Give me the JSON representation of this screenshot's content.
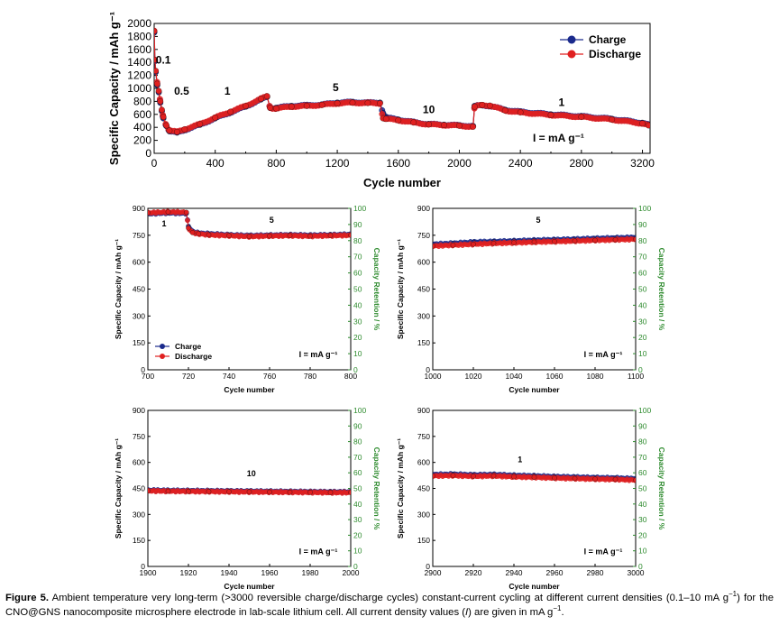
{
  "chart_data": [
    {
      "type": "scatter",
      "id": "main",
      "xlabel": "Cycle number",
      "ylabel": "Specific Capacity / mAh g⁻¹",
      "xlim": [
        0,
        3250
      ],
      "ylim": [
        0,
        2000
      ],
      "xticks": [
        0,
        400,
        800,
        1200,
        1600,
        2000,
        2400,
        2800,
        3200
      ],
      "yticks": [
        0,
        200,
        400,
        600,
        800,
        1000,
        1200,
        1400,
        1600,
        1800,
        2000
      ],
      "legend": {
        "position": "top-right",
        "entries": [
          "Charge",
          "Discharge"
        ]
      },
      "series": [
        {
          "name": "Charge",
          "color": "#1a2a8c",
          "x": [
            0,
            5,
            10,
            20,
            30,
            40,
            50,
            60,
            80,
            100,
            150,
            200,
            300,
            400,
            500,
            600,
            700,
            740,
            760,
            800,
            900,
            1000,
            1100,
            1200,
            1300,
            1400,
            1480,
            1500,
            1520,
            1600,
            1700,
            1800,
            1900,
            2000,
            2090,
            2100,
            2150,
            2200,
            2300,
            2400,
            2600,
            2800,
            3000,
            3200,
            3240
          ],
          "y": [
            1860,
            1420,
            1250,
            1050,
            940,
            780,
            650,
            540,
            420,
            340,
            320,
            360,
            440,
            540,
            630,
            720,
            830,
            870,
            700,
            700,
            730,
            740,
            750,
            780,
            790,
            780,
            780,
            620,
            550,
            520,
            480,
            450,
            440,
            430,
            420,
            730,
            740,
            730,
            670,
            640,
            600,
            570,
            530,
            470,
            440
          ]
        },
        {
          "name": "Discharge",
          "color": "#e02020",
          "x": [
            0,
            5,
            10,
            20,
            30,
            40,
            50,
            60,
            80,
            100,
            150,
            200,
            300,
            400,
            500,
            600,
            700,
            740,
            760,
            800,
            900,
            1000,
            1100,
            1200,
            1300,
            1400,
            1480,
            1500,
            1520,
            1600,
            1700,
            1800,
            1900,
            2000,
            2090,
            2100,
            2150,
            2200,
            2300,
            2400,
            2600,
            2800,
            3000,
            3200,
            3240
          ],
          "y": [
            1880,
            1440,
            1270,
            1070,
            960,
            800,
            670,
            560,
            430,
            350,
            330,
            370,
            450,
            550,
            640,
            730,
            840,
            880,
            700,
            690,
            720,
            730,
            745,
            770,
            780,
            775,
            770,
            540,
            530,
            510,
            475,
            445,
            435,
            425,
            410,
            720,
            745,
            735,
            660,
            630,
            590,
            560,
            520,
            460,
            430
          ]
        }
      ],
      "annotations": [
        {
          "text": "0.1",
          "x": 60,
          "y": 1380
        },
        {
          "text": "0.5",
          "x": 180,
          "y": 900
        },
        {
          "text": "1",
          "x": 480,
          "y": 900
        },
        {
          "text": "5",
          "x": 1190,
          "y": 960
        },
        {
          "text": "10",
          "x": 1800,
          "y": 620
        },
        {
          "text": "1",
          "x": 2670,
          "y": 730
        },
        {
          "text": "I = mA g⁻¹",
          "x": 2650,
          "y": 180
        }
      ]
    },
    {
      "type": "scatter",
      "id": "p700",
      "xlabel": "Cycle number",
      "ylabel": "Specific Capacity / mAh g⁻¹",
      "y2label": "Capacity Retention / %",
      "xlim": [
        700,
        800
      ],
      "ylim": [
        0,
        900
      ],
      "y2lim": [
        0,
        100
      ],
      "xticks": [
        700,
        720,
        740,
        760,
        780,
        800
      ],
      "yticks": [
        0,
        150,
        300,
        450,
        600,
        750,
        900
      ],
      "y2ticks": [
        0,
        10,
        20,
        30,
        40,
        50,
        60,
        70,
        80,
        90,
        100
      ],
      "legend": {
        "position": "bottom-left",
        "entries": [
          "Charge",
          "Discharge"
        ]
      },
      "series": [
        {
          "name": "Charge",
          "x": [
            700,
            710,
            719,
            720,
            722,
            725,
            730,
            740,
            750,
            760,
            770,
            780,
            790,
            800
          ],
          "y": [
            870,
            875,
            872,
            800,
            770,
            762,
            758,
            752,
            748,
            750,
            752,
            750,
            752,
            755
          ]
        },
        {
          "name": "Discharge",
          "x": [
            700,
            710,
            719,
            720,
            722,
            725,
            730,
            740,
            750,
            760,
            770,
            780,
            790,
            800
          ],
          "y": [
            875,
            880,
            878,
            790,
            765,
            758,
            752,
            748,
            743,
            746,
            748,
            745,
            748,
            750
          ]
        }
      ],
      "annotations": [
        {
          "text": "1",
          "x": 708,
          "y": 800
        },
        {
          "text": "5",
          "x": 761,
          "y": 820
        },
        {
          "text": "I = mA g⁻¹",
          "x": 784,
          "y": 70
        }
      ]
    },
    {
      "type": "scatter",
      "id": "p1000",
      "xlabel": "Cycle number",
      "ylabel": "Specific Capacity / mAh g⁻¹",
      "y2label": "Capacity Retention / %",
      "xlim": [
        1000,
        1100
      ],
      "ylim": [
        0,
        900
      ],
      "y2lim": [
        0,
        100
      ],
      "xticks": [
        1000,
        1020,
        1040,
        1060,
        1080,
        1100
      ],
      "yticks": [
        0,
        150,
        300,
        450,
        600,
        750,
        900
      ],
      "y2ticks": [
        0,
        10,
        20,
        30,
        40,
        50,
        60,
        70,
        80,
        90,
        100
      ],
      "series": [
        {
          "name": "Charge",
          "x": [
            1000,
            1010,
            1020,
            1030,
            1040,
            1050,
            1060,
            1070,
            1080,
            1090,
            1100
          ],
          "y": [
            700,
            705,
            712,
            715,
            718,
            722,
            725,
            728,
            732,
            735,
            738
          ]
        },
        {
          "name": "Discharge",
          "x": [
            1000,
            1010,
            1020,
            1030,
            1040,
            1050,
            1060,
            1070,
            1080,
            1090,
            1100
          ],
          "y": [
            690,
            695,
            700,
            705,
            708,
            712,
            715,
            718,
            722,
            725,
            728
          ]
        }
      ],
      "annotations": [
        {
          "text": "5",
          "x": 1052,
          "y": 820
        },
        {
          "text": "I = mA g⁻¹",
          "x": 1084,
          "y": 70
        }
      ]
    },
    {
      "type": "scatter",
      "id": "p1900",
      "xlabel": "Cycle number",
      "ylabel": "Specific Capacity / mAh g⁻¹",
      "y2label": "Capacity Retention / %",
      "xlim": [
        1900,
        2000
      ],
      "ylim": [
        0,
        900
      ],
      "y2lim": [
        0,
        100
      ],
      "xticks": [
        1900,
        1920,
        1940,
        1960,
        1980,
        2000
      ],
      "yticks": [
        0,
        150,
        300,
        450,
        600,
        750,
        900
      ],
      "y2ticks": [
        0,
        10,
        20,
        30,
        40,
        50,
        60,
        70,
        80,
        90,
        100
      ],
      "series": [
        {
          "name": "Charge",
          "x": [
            1900,
            1910,
            1920,
            1930,
            1940,
            1950,
            1960,
            1970,
            1980,
            1990,
            2000
          ],
          "y": [
            440,
            438,
            437,
            436,
            435,
            434,
            433,
            432,
            431,
            430,
            430
          ]
        },
        {
          "name": "Discharge",
          "x": [
            1900,
            1910,
            1920,
            1930,
            1940,
            1950,
            1960,
            1970,
            1980,
            1990,
            2000
          ],
          "y": [
            436,
            434,
            433,
            432,
            431,
            430,
            429,
            428,
            427,
            426,
            426
          ]
        }
      ],
      "annotations": [
        {
          "text": "10",
          "x": 1951,
          "y": 520
        },
        {
          "text": "I = mA g⁻¹",
          "x": 1984,
          "y": 70
        }
      ]
    },
    {
      "type": "scatter",
      "id": "p2900",
      "xlabel": "Cycle number",
      "ylabel": "Specific Capacity / mAh g⁻¹",
      "y2label": "Capacity Retention / %",
      "xlim": [
        2900,
        3000
      ],
      "ylim": [
        0,
        900
      ],
      "y2lim": [
        0,
        100
      ],
      "xticks": [
        2900,
        2920,
        2940,
        2960,
        2980,
        3000
      ],
      "yticks": [
        0,
        150,
        300,
        450,
        600,
        750,
        900
      ],
      "y2ticks": [
        0,
        10,
        20,
        30,
        40,
        50,
        60,
        70,
        80,
        90,
        100
      ],
      "series": [
        {
          "name": "Charge",
          "x": [
            2900,
            2910,
            2920,
            2930,
            2940,
            2950,
            2960,
            2970,
            2980,
            2990,
            3000
          ],
          "y": [
            530,
            532,
            528,
            530,
            525,
            522,
            518,
            515,
            512,
            510,
            506
          ]
        },
        {
          "name": "Discharge",
          "x": [
            2900,
            2910,
            2920,
            2930,
            2940,
            2950,
            2960,
            2970,
            2980,
            2990,
            3000
          ],
          "y": [
            522,
            524,
            520,
            522,
            517,
            514,
            510,
            507,
            504,
            502,
            498
          ]
        }
      ],
      "annotations": [
        {
          "text": "1",
          "x": 2943,
          "y": 600
        },
        {
          "text": "I = mA g⁻¹",
          "x": 2984,
          "y": 70
        }
      ]
    }
  ],
  "caption": {
    "label": "Figure 5.",
    "line1": "Ambient temperature very long-term (>3000 reversible charge/discharge cycles) constant-current cycling at different current densities",
    "line2a": "(0.1–10 mA g",
    "sup1": "−1",
    "line2b": ") for the CNO@GNS nanocomposite microsphere electrode in lab-scale lithium cell. All current density values (",
    "italicI": "I",
    "line2c": ") are given in mA g",
    "sup2": "−1",
    "line2d": "."
  },
  "colors": {
    "charge": "#1a2a8c",
    "discharge": "#e02020",
    "retention_axis": "#2e8b2e"
  }
}
